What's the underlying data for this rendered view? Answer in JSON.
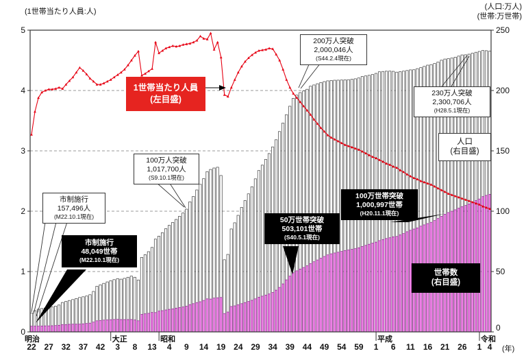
{
  "axis_titles": {
    "left": "(1世帯当たり人員:人)",
    "right_line1": "(人口:万人)",
    "right_line2": "(世帯:万世帯)",
    "x_unit": "(年)"
  },
  "chart_data": {
    "type": "combo",
    "title": "",
    "x": {
      "start_year": 1889,
      "end_year": 2022,
      "tick_labels": [
        "22",
        "27",
        "32",
        "37",
        "42",
        "3",
        "8",
        "13",
        "4",
        "9",
        "14",
        "19",
        "24",
        "29",
        "34",
        "39",
        "44",
        "49",
        "54",
        "59",
        "1",
        "6",
        "11",
        "16",
        "21",
        "26",
        "1",
        "4"
      ],
      "tick_years": [
        1889,
        1894,
        1899,
        1904,
        1909,
        1914,
        1919,
        1924,
        1929,
        1934,
        1939,
        1944,
        1949,
        1954,
        1959,
        1964,
        1969,
        1974,
        1979,
        1984,
        1989,
        1994,
        1999,
        2004,
        2009,
        2014,
        2019,
        2022
      ],
      "eras": [
        {
          "name": "明治",
          "year": 1889,
          "divider": false
        },
        {
          "name": "大正",
          "year": 1912,
          "divider": true
        },
        {
          "name": "昭和",
          "year": 1926,
          "divider": true
        },
        {
          "name": "平成",
          "year": 1989,
          "divider": true
        },
        {
          "name": "令和",
          "year": 2019,
          "divider": true
        }
      ]
    },
    "left_axis": {
      "label": "(1世帯当たり人員:人)",
      "min": 0,
      "max": 5,
      "ticks": [
        0,
        1,
        2,
        3,
        4,
        5
      ],
      "grid_at": [
        1,
        2,
        3,
        4
      ]
    },
    "right_axis": {
      "label": "(人口:万人)(世帯:万世帯)",
      "min": 0,
      "max": 250,
      "ticks": [
        0,
        50,
        100,
        150,
        200,
        250
      ]
    },
    "series": [
      {
        "name": "人口",
        "legend": "人口(右目盛)",
        "type": "bar",
        "axis": "right",
        "fill": "#ffffff",
        "stroke": "#3c3c3c",
        "values": [
          15.7,
          17.6,
          18.8,
          19.4,
          19.8,
          20.2,
          20.7,
          21.3,
          22.3,
          24.4,
          25.2,
          26.0,
          26.8,
          27.6,
          28.5,
          29.1,
          29.7,
          30.8,
          33.5,
          37.8,
          39.0,
          40.2,
          41.4,
          42.4,
          43.3,
          44.1,
          43.7,
          44.4,
          45.3,
          46.2,
          45.3,
          43.0,
          61.7,
          64.0,
          66.5,
          70.0,
          76.9,
          79.3,
          82.2,
          85.5,
          88.3,
          90.7,
          93.2,
          95.8,
          98.6,
          101.7,
          107.8,
          112.2,
          117.6,
          122.3,
          127.0,
          132.8,
          134.6,
          135.8,
          136.4,
          129.6,
          59.8,
          64.2,
          85.3,
          90.4,
          96.6,
          103.1,
          108.8,
          114.4,
          120.2,
          126.8,
          133.7,
          138.2,
          142.9,
          147.8,
          153.3,
          159.2,
          166.0,
          173.0,
          180.0,
          187.0,
          193.5,
          196.2,
          198.3,
          199.6,
          201.0,
          203.6,
          204.6,
          205.6,
          206.6,
          207.4,
          208.0,
          208.3,
          208.5,
          208.6,
          208.7,
          208.8,
          209.0,
          209.3,
          209.7,
          210.4,
          211.6,
          212.1,
          212.6,
          213.3,
          214.2,
          215.5,
          215.8,
          216.0,
          216.1,
          215.9,
          215.2,
          215.6,
          216.1,
          216.6,
          217.1,
          217.2,
          218.1,
          219.0,
          220.0,
          221.0,
          221.5,
          222.4,
          223.6,
          225.1,
          226.1,
          226.4,
          226.9,
          227.6,
          228.5,
          229.5,
          229.6,
          230.1,
          230.9,
          231.7,
          232.4,
          233.2,
          233.0,
          232.6
        ]
      },
      {
        "name": "世帯数",
        "legend": "世帯数(右目盛)",
        "type": "bar",
        "axis": "right",
        "fill": "#f083e8",
        "stroke": "#8b2a8b",
        "values": [
          4.8,
          4.8,
          4.8,
          4.9,
          5.0,
          5.0,
          5.1,
          5.3,
          5.5,
          6.1,
          6.1,
          6.3,
          6.4,
          6.4,
          6.5,
          6.7,
          7.0,
          7.3,
          8.1,
          9.2,
          9.5,
          9.8,
          10.0,
          10.1,
          10.3,
          10.4,
          10.2,
          10.2,
          10.2,
          10.3,
          9.9,
          9.2,
          14.5,
          15.0,
          15.4,
          16.1,
          16.0,
          17.2,
          17.6,
          18.2,
          18.7,
          19.1,
          19.7,
          20.2,
          20.7,
          21.3,
          22.6,
          23.4,
          24.3,
          25.0,
          26.1,
          27.4,
          27.2,
          28.0,
          28.3,
          28.5,
          15.2,
          16.5,
          21.1,
          21.6,
          22.5,
          23.4,
          24.3,
          25.2,
          26.2,
          27.4,
          28.7,
          29.6,
          30.5,
          31.4,
          32.7,
          34.6,
          36.9,
          39.8,
          43.1,
          46.2,
          49.0,
          50.6,
          52.1,
          53.4,
          54.8,
          56.6,
          58.1,
          59.6,
          61.1,
          62.5,
          63.8,
          64.7,
          65.4,
          66.0,
          66.7,
          67.4,
          67.9,
          68.4,
          69.0,
          69.7,
          70.8,
          71.7,
          72.6,
          73.6,
          74.4,
          75.6,
          76.5,
          77.4,
          78.0,
          78.8,
          79.1,
          80.4,
          81.5,
          83.0,
          84.2,
          85.2,
          86.2,
          87.6,
          88.7,
          89.8,
          90.8,
          92.3,
          94.0,
          95.8,
          97.5,
          98.9,
          100.0,
          101.2,
          102.5,
          103.8,
          104.8,
          106.0,
          107.4,
          108.8,
          110.1,
          112.1,
          113.1,
          114.0
        ]
      },
      {
        "name": "1世帯当たり人員",
        "legend": "1世帯当たり人員(左目盛)",
        "type": "line",
        "axis": "left",
        "color": "#e60012",
        "values": [
          3.27,
          3.65,
          3.88,
          3.97,
          4.0,
          4.02,
          4.02,
          4.03,
          4.05,
          4.03,
          4.1,
          4.16,
          4.22,
          4.3,
          4.38,
          4.33,
          4.27,
          4.2,
          4.15,
          4.1,
          4.1,
          4.12,
          4.15,
          4.18,
          4.22,
          4.26,
          4.3,
          4.35,
          4.42,
          4.5,
          4.58,
          4.65,
          4.25,
          4.28,
          4.32,
          4.36,
          4.8,
          4.62,
          4.66,
          4.7,
          4.72,
          4.74,
          4.73,
          4.74,
          4.76,
          4.77,
          4.78,
          4.8,
          4.83,
          4.9,
          4.86,
          4.85,
          4.95,
          4.68,
          4.8,
          4.55,
          3.93,
          3.9,
          4.05,
          4.18,
          4.3,
          4.4,
          4.48,
          4.54,
          4.59,
          4.63,
          4.66,
          4.67,
          4.68,
          4.7,
          4.69,
          4.6,
          4.5,
          4.35,
          4.18,
          4.05,
          3.95,
          3.88,
          3.81,
          3.74,
          3.67,
          3.6,
          3.52,
          3.45,
          3.38,
          3.32,
          3.26,
          3.22,
          3.19,
          3.16,
          3.13,
          3.1,
          3.08,
          3.06,
          3.04,
          3.02,
          2.99,
          2.96,
          2.93,
          2.9,
          2.88,
          2.85,
          2.82,
          2.79,
          2.77,
          2.74,
          2.72,
          2.68,
          2.65,
          2.61,
          2.58,
          2.55,
          2.53,
          2.5,
          2.48,
          2.46,
          2.44,
          2.41,
          2.38,
          2.35,
          2.32,
          2.29,
          2.27,
          2.25,
          2.23,
          2.21,
          2.19,
          2.17,
          2.15,
          2.13,
          2.11,
          2.08,
          2.06,
          2.04
        ]
      }
    ]
  },
  "annotations": [
    {
      "id": "city-founding-population",
      "style": "white",
      "lines": [
        "市制施行",
        "157,496人",
        "(M22.10.1現在)"
      ]
    },
    {
      "id": "city-founding-households",
      "style": "black",
      "lines": [
        "市制施行",
        "48,049世帯",
        "(M22.10.1現在)"
      ]
    },
    {
      "id": "one-million-population",
      "style": "white",
      "lines": [
        "100万人突破",
        "1,017,700人",
        "(S9.10.1現在)"
      ]
    },
    {
      "id": "two-million-population",
      "style": "white",
      "lines": [
        "200万人突破",
        "2,000,046人",
        "(S44.2.4現在)"
      ]
    },
    {
      "id": "two-point-three-million-population",
      "style": "white",
      "lines": [
        "230万人突破",
        "2,300,706人",
        "(H28.5.1現在)"
      ]
    },
    {
      "id": "population-legend",
      "style": "white",
      "lines": [
        "人口",
        "(右目盛)"
      ]
    },
    {
      "id": "half-million-households",
      "style": "black",
      "lines": [
        "50万世帯突破",
        "503,101世帯",
        "(S40.5.1現在)"
      ]
    },
    {
      "id": "one-million-households",
      "style": "black",
      "lines": [
        "100万世帯突破",
        "1,000,997世帯",
        "(H20.11.1現在)"
      ]
    },
    {
      "id": "households-legend",
      "style": "black",
      "lines": [
        "世帯数",
        "(右目盛)"
      ]
    },
    {
      "id": "per-household-legend",
      "style": "red",
      "lines": [
        "1世帯当たり人員",
        "(左目盛)"
      ]
    }
  ]
}
